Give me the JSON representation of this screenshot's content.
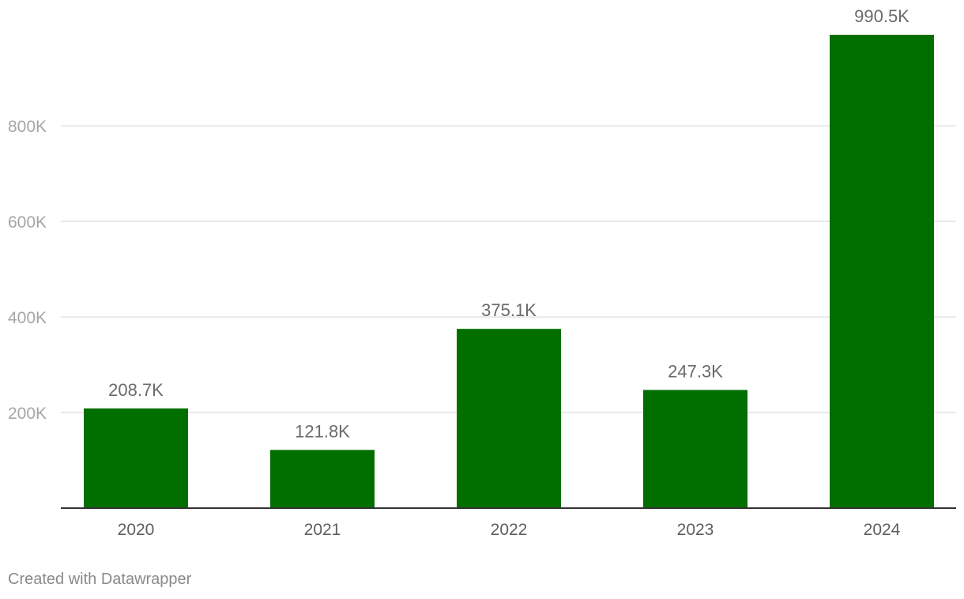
{
  "chart_data": {
    "type": "bar",
    "categories": [
      "2020",
      "2021",
      "2022",
      "2023",
      "2024"
    ],
    "values": [
      208700,
      121800,
      375100,
      247300,
      990500
    ],
    "value_labels": [
      "208.7K",
      "121.8K",
      "375.1K",
      "247.3K",
      "990.5K"
    ],
    "yticks": [
      {
        "value": 200000,
        "label": "200K"
      },
      {
        "value": 400000,
        "label": "400K"
      },
      {
        "value": 600000,
        "label": "600K"
      },
      {
        "value": 800000,
        "label": "800K"
      }
    ],
    "ylim": [
      0,
      990500
    ],
    "grid": true,
    "bar_color": "#006f00"
  },
  "footer": {
    "credit": "Created with Datawrapper"
  }
}
